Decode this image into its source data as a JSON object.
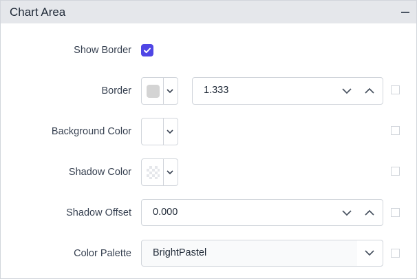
{
  "panel": {
    "title": "Chart Area",
    "collapse_icon": "minus-icon"
  },
  "rows": {
    "show_border": {
      "label": "Show Border",
      "checked": true,
      "accent": "#4f46e5"
    },
    "border": {
      "label": "Border",
      "color": "#d4d4d4",
      "width_value": "1.333"
    },
    "background_color": {
      "label": "Background Color",
      "color": "#ffffff"
    },
    "shadow_color": {
      "label": "Shadow Color",
      "color": "transparent"
    },
    "shadow_offset": {
      "label": "Shadow Offset",
      "value": "0.000"
    },
    "color_palette": {
      "label": "Color Palette",
      "value": "BrightPastel"
    }
  }
}
